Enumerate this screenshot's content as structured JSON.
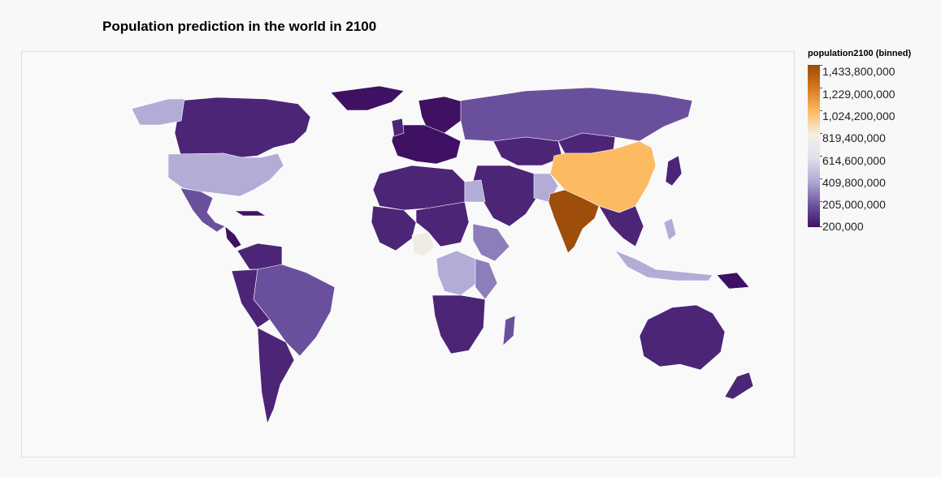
{
  "chart_data": {
    "type": "choropleth",
    "title": "Population prediction in the world in 2100",
    "legend": {
      "title": "population2100 (binned)",
      "labels": [
        "1,433,800,000",
        "1,229,000,000",
        "1,024,200,000",
        "819,400,000",
        "614,600,000",
        "409,800,000",
        "205,000,000",
        "200,000"
      ],
      "bin_edges": [
        200000,
        205000000,
        409800000,
        614600000,
        819400000,
        1024200000,
        1229000000,
        1433800000
      ]
    },
    "regions": [
      {
        "name": "India",
        "bin": "1,229,000,000 - 1,433,800,000"
      },
      {
        "name": "China",
        "bin": "819,400,000 - 1,024,200,000"
      },
      {
        "name": "Nigeria",
        "bin": "614,600,000 - 819,400,000"
      },
      {
        "name": "United States",
        "bin": "409,800,000 - 614,600,000"
      },
      {
        "name": "Pakistan",
        "bin": "409,800,000 - 614,600,000"
      },
      {
        "name": "Democratic Republic of the Congo",
        "bin": "205,000,000 - 409,800,000"
      },
      {
        "name": "Ethiopia",
        "bin": "205,000,000 - 409,800,000"
      },
      {
        "name": "Tanzania",
        "bin": "205,000,000 - 409,800,000"
      },
      {
        "name": "Egypt",
        "bin": "205,000,000 - 409,800,000"
      },
      {
        "name": "Indonesia",
        "bin": "205,000,000 - 409,800,000"
      },
      {
        "name": "Philippines",
        "bin": "205,000,000 - 409,800,000"
      },
      {
        "name": "Brazil",
        "bin": "200,000 - 205,000,000"
      },
      {
        "name": "Russia",
        "bin": "200,000 - 205,000,000"
      },
      {
        "name": "Bangladesh",
        "bin": "200,000 - 205,000,000"
      }
    ],
    "colors": {
      "bin_1": "#3f1163",
      "bin_1_light": "#4d2577",
      "bin_2": "#6a509c",
      "bin_3": "#b3acd6",
      "bin_4": "#efece6",
      "bin_5": "#fcba62",
      "bin_7": "#9e4d0a"
    }
  }
}
